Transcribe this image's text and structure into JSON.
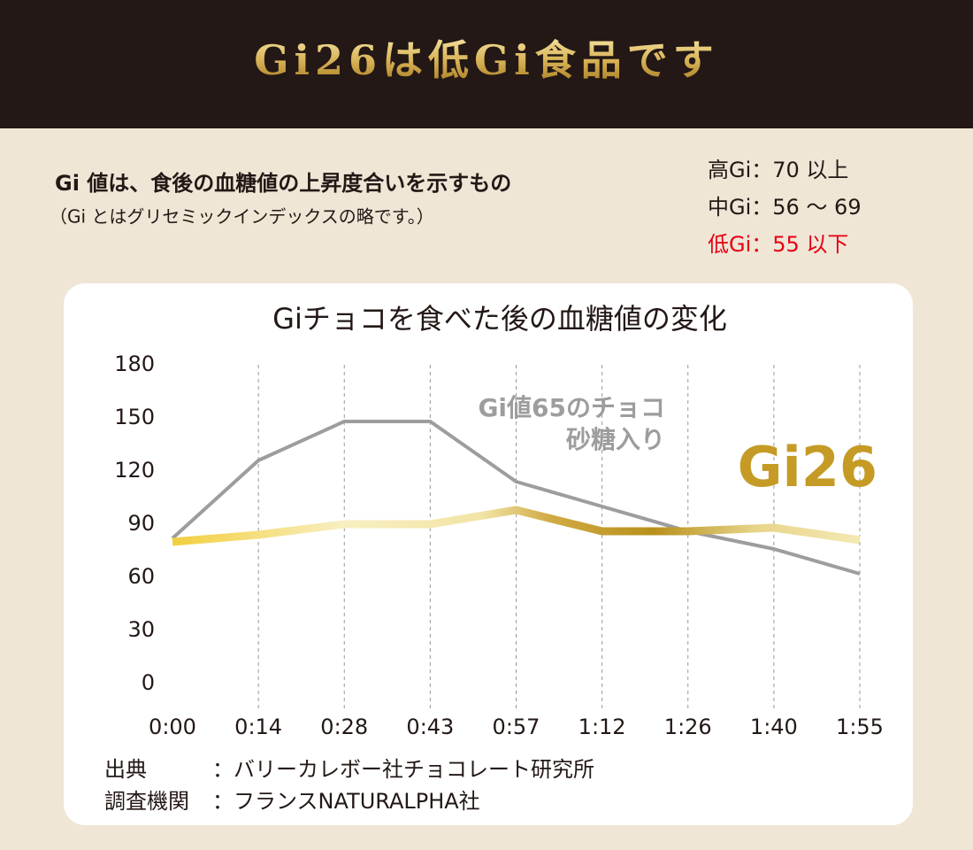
{
  "header": {
    "title": "Gi26は低Gi食品です"
  },
  "intro": {
    "heading": "Gi 値は、食後の血糖値の上昇度合いを示すもの",
    "note": "（Gi とはグリセミックインデックスの略です。）"
  },
  "gi_scale": [
    {
      "text": "高Gi：70 以上",
      "color": "#231815"
    },
    {
      "text": "中Gi：56 〜 69",
      "color": "#231815"
    },
    {
      "text": "低Gi：55 以下",
      "color": "#e60012"
    }
  ],
  "chart_data": {
    "type": "line",
    "title": "Giチョコを食べた後の血糖値の変化",
    "categories": [
      "0:00",
      "0:14",
      "0:28",
      "0:43",
      "0:57",
      "1:12",
      "1:26",
      "1:40",
      "1:55"
    ],
    "series": [
      {
        "name": [
          "Gi値65のチョコ",
          "砂糖入り"
        ],
        "color": "#9d9d9d",
        "values": [
          82,
          126,
          148,
          148,
          114,
          100,
          86,
          76,
          62
        ]
      },
      {
        "name": [
          "Gi26"
        ],
        "color": "#c59b25",
        "values": [
          80,
          84,
          90,
          90,
          98,
          86,
          86,
          88,
          81
        ]
      }
    ],
    "ylim": [
      0,
      180
    ],
    "yticks": [
      0,
      30,
      60,
      90,
      120,
      150,
      180
    ],
    "grid": true
  },
  "source": [
    {
      "label": "出典",
      "text": "：バリーカレボー社チョコレート研究所"
    },
    {
      "label": "調査機関",
      "text": "：フランスNATURALPHA社"
    }
  ]
}
